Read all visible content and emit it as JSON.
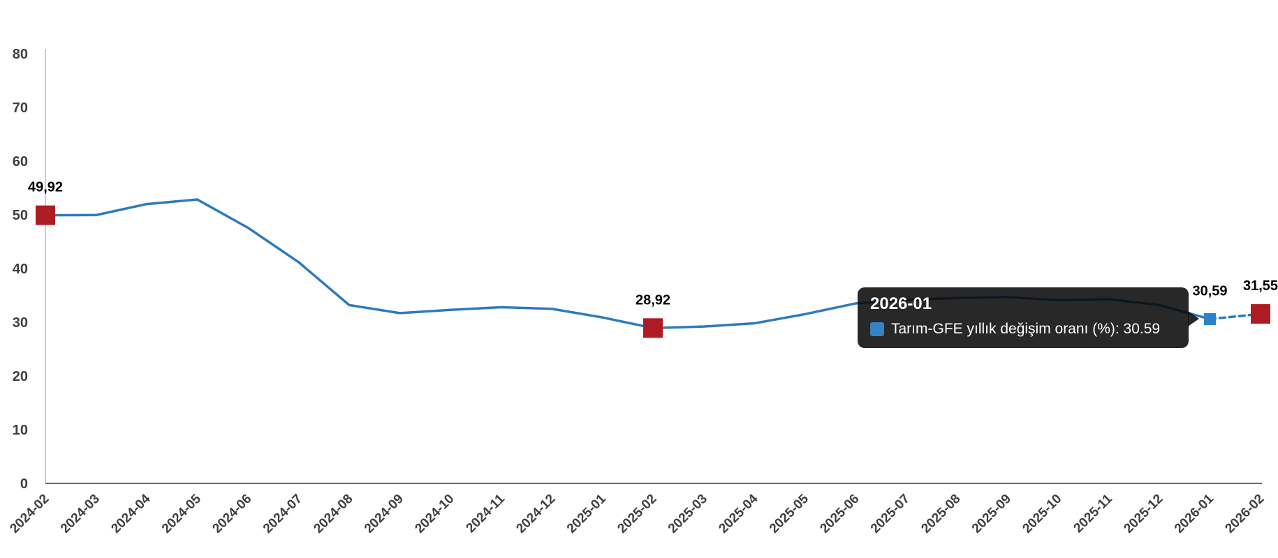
{
  "chart_data": {
    "type": "line",
    "title": "",
    "series_name": "Tarım-GFE yıllık değişim oranı (%)",
    "categories": [
      "2024-02",
      "2024-03",
      "2024-04",
      "2024-05",
      "2024-06",
      "2024-07",
      "2024-08",
      "2024-09",
      "2024-10",
      "2024-11",
      "2024-12",
      "2025-01",
      "2025-02",
      "2025-03",
      "2025-04",
      "2025-05",
      "2025-06",
      "2025-07",
      "2025-08",
      "2025-09",
      "2025-10",
      "2025-11",
      "2025-12",
      "2026-01",
      "2026-02"
    ],
    "values": [
      49.92,
      49.95,
      52.0,
      52.85,
      47.6,
      41.2,
      33.2,
      31.7,
      32.3,
      32.8,
      32.5,
      30.9,
      28.92,
      29.2,
      29.8,
      31.5,
      33.5,
      34.2,
      34.5,
      34.7,
      34.1,
      34.3,
      33.2,
      30.59,
      31.55
    ],
    "ylim": [
      0,
      80
    ],
    "y_ticks": [
      0,
      10,
      20,
      30,
      40,
      50,
      60,
      70,
      80
    ],
    "grid": false,
    "legend": "none",
    "line_color": "#2e7abd",
    "marker_color": "#ae1c23",
    "hover_marker_color": "#2d82cb",
    "axis_color": "#c9cfd5",
    "baseline_color": "#3a3a3a",
    "marker_points": [
      "2024-02",
      "2025-02",
      "2026-02"
    ],
    "hovered_category": "2026-01",
    "dashed_segment": [
      "2026-01",
      "2026-02"
    ],
    "labeled_points": [
      {
        "category": "2024-02",
        "label": "49,92"
      },
      {
        "category": "2025-02",
        "label": "28,92"
      },
      {
        "category": "2026-01",
        "label": "30,59"
      },
      {
        "category": "2026-02",
        "label": "31,55"
      }
    ]
  },
  "tooltip": {
    "header": "2026-01",
    "text": "Tarım-GFE yıllık değişim oranı (%): 30.59",
    "swatch_color": "#3583c4"
  }
}
